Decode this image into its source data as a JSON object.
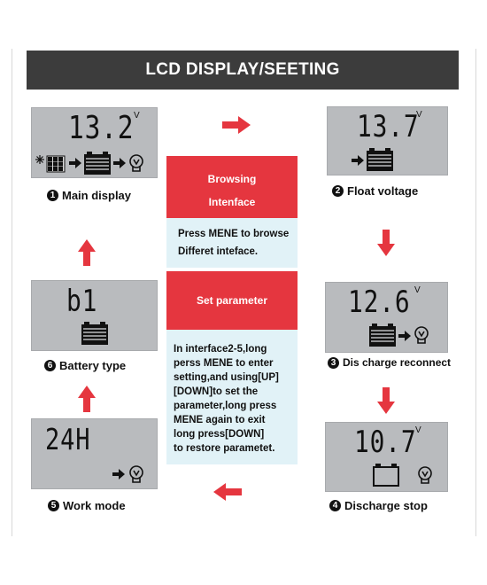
{
  "header": {
    "title": "LCD DISPLAY/SEETING"
  },
  "center": {
    "browsing_line1": "Browsing",
    "browsing_line2": "Intenface",
    "browse_text_line1": "Press MENE to browse",
    "browse_text_line2": "Differet inteface.",
    "set_parameter": "Set parameter",
    "set_text_lines": [
      "In interface2-5,long",
      "perss MENE to enter",
      "setting,and using[UP]",
      "[DOWN]to set the",
      "parameter,long press",
      "MENE again to exit",
      "long press[DOWN]",
      "to restore parametet."
    ]
  },
  "panels": {
    "main": {
      "number": "1",
      "label": "Main display",
      "reading": "13.2",
      "unit": "V"
    },
    "float": {
      "number": "2",
      "label": "Float voltage",
      "reading": "13.7",
      "unit": "V"
    },
    "reconnect": {
      "number": "3",
      "label": "Dis charge reconnect",
      "reading": "12.6",
      "unit": "V"
    },
    "stop": {
      "number": "4",
      "label": "Discharge stop",
      "reading": "10.7",
      "unit": "V"
    },
    "work": {
      "number": "5",
      "label": "Work mode",
      "reading": "24H"
    },
    "battery": {
      "number": "6",
      "label": "Battery type",
      "reading": "b1"
    }
  },
  "colors": {
    "header_bg": "#3c3c3c",
    "accent_red": "#e5363f",
    "lcd_bg": "#b9bbbe",
    "info_bg": "#e1f2f7"
  }
}
